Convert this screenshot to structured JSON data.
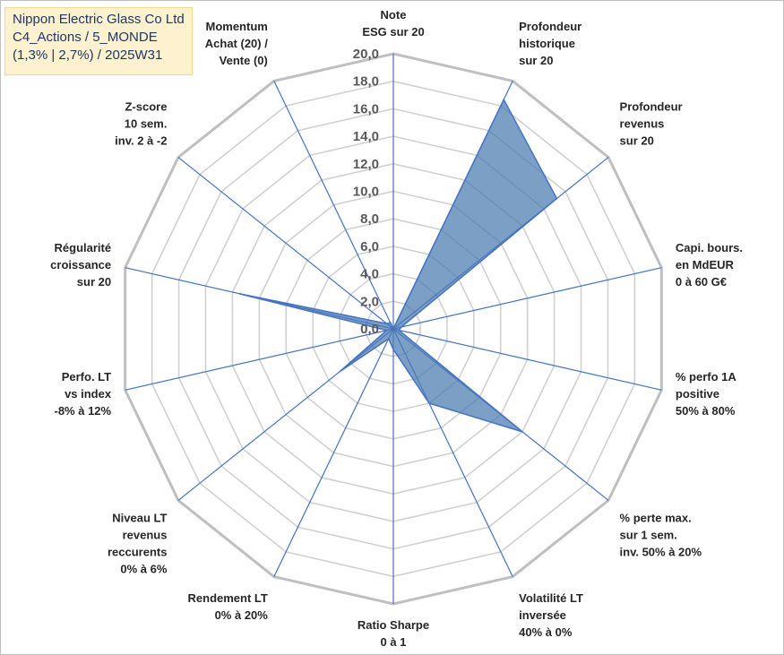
{
  "title_box": {
    "line1": "Nippon Electric Glass Co Ltd",
    "line2": "C4_Actions / 5_MONDE",
    "line3": "(1,3% | 2,7%) / 2025W31"
  },
  "colors": {
    "series_fill": "#4a7ab0",
    "series_stroke": "#4472c4",
    "spoke": "#4472c4",
    "grid": "#d0d0d0",
    "outer_grid": "#bfbfbf"
  },
  "chart_data": {
    "type": "radar",
    "r_min": 0,
    "r_max": 20,
    "r_step": 2,
    "tick_labels": [
      "0,0",
      "2,0",
      "4,0",
      "6,0",
      "8,0",
      "10,0",
      "12,0",
      "14,0",
      "16,0",
      "18,0",
      "20,0"
    ],
    "axes": [
      [
        "Note",
        "ESG sur 20"
      ],
      [
        "Profondeur",
        "historique",
        "sur 20"
      ],
      [
        "Profondeur",
        "revenus",
        "sur 20"
      ],
      [
        "Capi. bours.",
        "en MdEUR",
        "0 à 60 G€"
      ],
      [
        "% perfo 1A",
        "positive",
        "50% à 80%"
      ],
      [
        "% perte max.",
        "sur 1 sem.",
        "inv. 50% à 20%"
      ],
      [
        "Volatilité LT",
        "inversée",
        "40% à 0%"
      ],
      [
        "Ratio Sharpe",
        "0 à 1"
      ],
      [
        "Rendement LT",
        "0% à 20%"
      ],
      [
        "Niveau LT",
        "revenus",
        "reccurents",
        "0% à 6%"
      ],
      [
        "Perfo. LT",
        "vs index",
        "-8% à 12%"
      ],
      [
        "Régularité",
        "croissance",
        "sur 20"
      ],
      [
        "Z-score",
        "10 sem.",
        "inv. 2 à -2"
      ],
      [
        "Momentum",
        "Achat (20) /",
        "Vente (0)"
      ]
    ],
    "values": [
      0.0,
      18.5,
      15.2,
      0.6,
      0.4,
      12.0,
      6.0,
      1.5,
      0.8,
      5.0,
      0.5,
      11.5,
      0.6,
      0.5
    ],
    "grid": true,
    "legend": "none"
  }
}
